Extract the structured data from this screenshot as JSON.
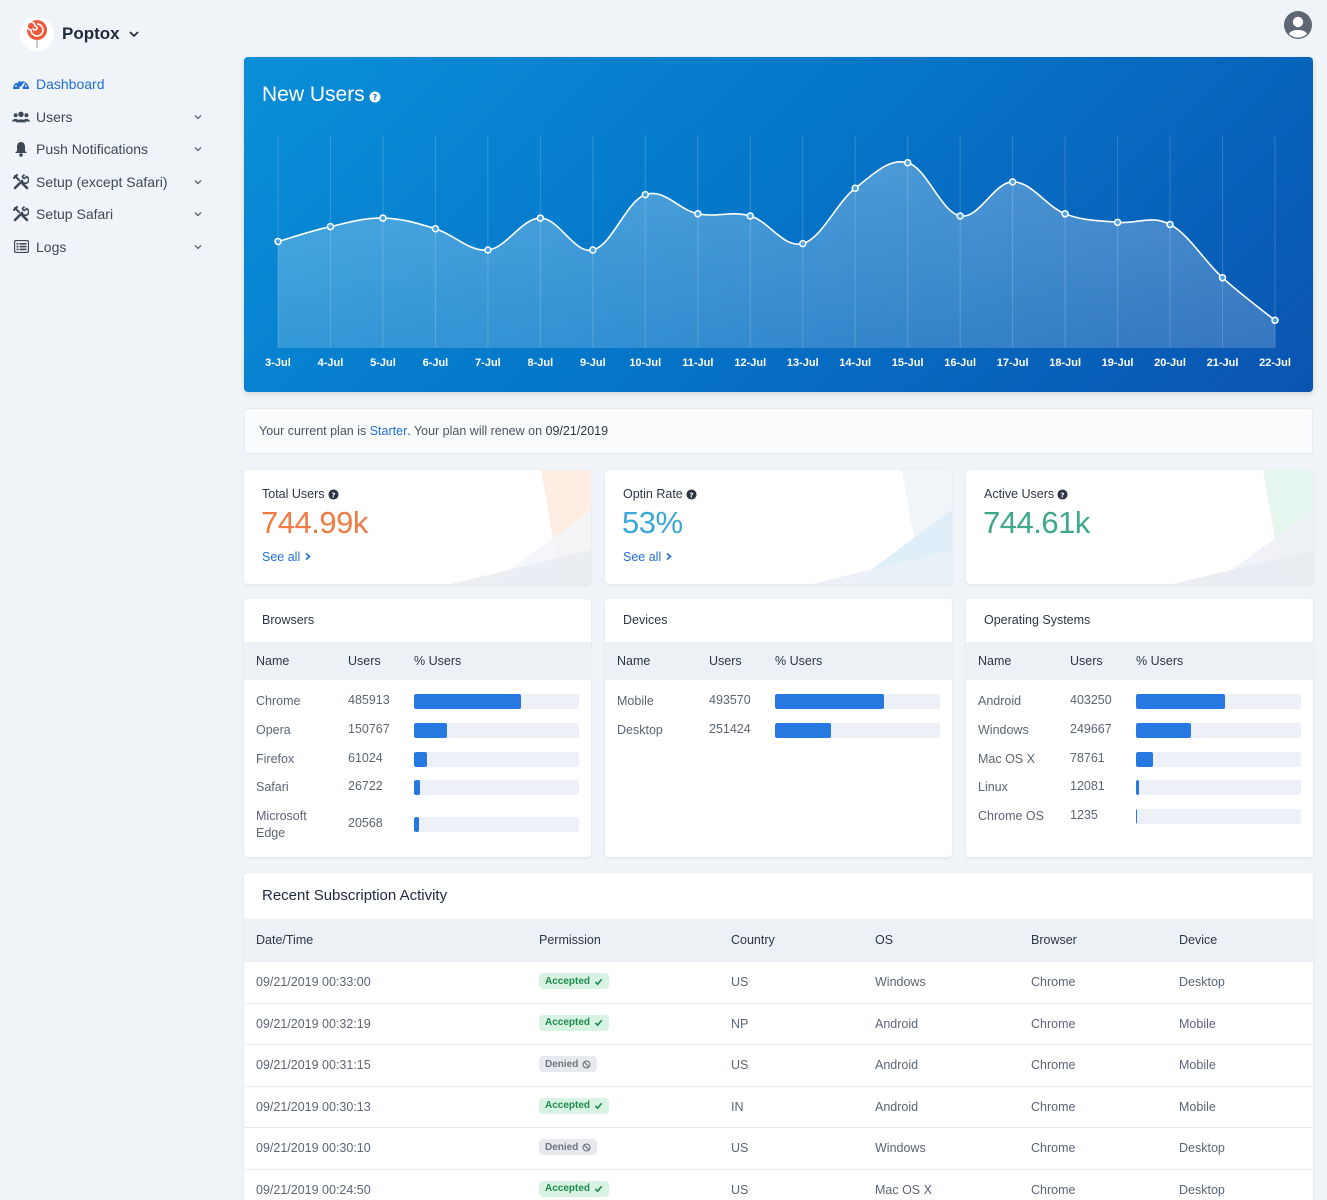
{
  "app": {
    "name": "Poptox"
  },
  "sidebar": {
    "items": [
      {
        "label": "Dashboard",
        "icon": "dashboard-gauge-icon",
        "active": true,
        "expandable": false
      },
      {
        "label": "Users",
        "icon": "users-icon",
        "active": false,
        "expandable": true
      },
      {
        "label": "Push Notifications",
        "icon": "bell-icon",
        "active": false,
        "expandable": true
      },
      {
        "label": "Setup (except Safari)",
        "icon": "tools-icon",
        "active": false,
        "expandable": true
      },
      {
        "label": "Setup Safari",
        "icon": "tools-icon",
        "active": false,
        "expandable": true
      },
      {
        "label": "Logs",
        "icon": "list-icon",
        "active": false,
        "expandable": true
      }
    ]
  },
  "hero": {
    "title": "New Users"
  },
  "chart_data": {
    "type": "area",
    "title": "New Users",
    "categories": [
      "3-Jul",
      "4-Jul",
      "5-Jul",
      "6-Jul",
      "7-Jul",
      "8-Jul",
      "9-Jul",
      "10-Jul",
      "11-Jul",
      "12-Jul",
      "13-Jul",
      "14-Jul",
      "15-Jul",
      "16-Jul",
      "17-Jul",
      "18-Jul",
      "19-Jul",
      "20-Jul",
      "21-Jul",
      "22-Jul"
    ],
    "series": [
      {
        "values": [
          0.5,
          0.57,
          0.61,
          0.56,
          0.46,
          0.61,
          0.46,
          0.72,
          0.63,
          0.62,
          0.49,
          0.75,
          0.87,
          0.62,
          0.78,
          0.63,
          0.59,
          0.58,
          0.33,
          0.13
        ]
      }
    ],
    "ylim": [
      0,
      1
    ],
    "grid": "vertical",
    "legend": "none"
  },
  "plan": {
    "prefix": "Your current plan is ",
    "plan_name": "Starter",
    "middle": ". Your plan will renew on ",
    "renew_date": "09/21/2019"
  },
  "stats": [
    {
      "title": "Total Users",
      "value": "744.99k",
      "link": "See all",
      "color": "#ef7b45"
    },
    {
      "title": "Optin Rate",
      "value": "53%",
      "link": "See all",
      "color": "#3aa8d8"
    },
    {
      "title": "Active Users",
      "value": "744.61k",
      "link": "",
      "color": "#3da88a"
    }
  ],
  "tables": [
    {
      "title": "Browsers",
      "headers": [
        "Name",
        "Users",
        "% Users"
      ],
      "rows": [
        {
          "name": "Chrome",
          "users": "485913",
          "pct": 0.65
        },
        {
          "name": "Opera",
          "users": "150767",
          "pct": 0.2
        },
        {
          "name": "Firefox",
          "users": "61024",
          "pct": 0.08
        },
        {
          "name": "Safari",
          "users": "26722",
          "pct": 0.036
        },
        {
          "name": "Microsoft Edge",
          "users": "20568",
          "pct": 0.028
        }
      ]
    },
    {
      "title": "Devices",
      "headers": [
        "Name",
        "Users",
        "% Users"
      ],
      "rows": [
        {
          "name": "Mobile",
          "users": "493570",
          "pct": 0.66
        },
        {
          "name": "Desktop",
          "users": "251424",
          "pct": 0.34
        }
      ]
    },
    {
      "title": "Operating Systems",
      "headers": [
        "Name",
        "Users",
        "% Users"
      ],
      "rows": [
        {
          "name": "Android",
          "users": "403250",
          "pct": 0.54
        },
        {
          "name": "Windows",
          "users": "249667",
          "pct": 0.335
        },
        {
          "name": "Mac OS X",
          "users": "78761",
          "pct": 0.106
        },
        {
          "name": "Linux",
          "users": "12081",
          "pct": 0.016
        },
        {
          "name": "Chrome OS",
          "users": "1235",
          "pct": 0.002
        }
      ]
    }
  ],
  "activity": {
    "title": "Recent Subscription Activity",
    "headers": [
      "Date/Time",
      "Permission",
      "Country",
      "OS",
      "Browser",
      "Device"
    ],
    "rows": [
      {
        "datetime": "09/21/2019 00:33:00",
        "permission": "Accepted",
        "country": "US",
        "os": "Windows",
        "browser": "Chrome",
        "device": "Desktop"
      },
      {
        "datetime": "09/21/2019 00:32:19",
        "permission": "Accepted",
        "country": "NP",
        "os": "Android",
        "browser": "Chrome",
        "device": "Mobile"
      },
      {
        "datetime": "09/21/2019 00:31:15",
        "permission": "Denied",
        "country": "US",
        "os": "Android",
        "browser": "Chrome",
        "device": "Mobile"
      },
      {
        "datetime": "09/21/2019 00:30:13",
        "permission": "Accepted",
        "country": "IN",
        "os": "Android",
        "browser": "Chrome",
        "device": "Mobile"
      },
      {
        "datetime": "09/21/2019 00:30:10",
        "permission": "Denied",
        "country": "US",
        "os": "Windows",
        "browser": "Chrome",
        "device": "Desktop"
      },
      {
        "datetime": "09/21/2019 00:24:50",
        "permission": "Accepted",
        "country": "US",
        "os": "Mac OS X",
        "browser": "Chrome",
        "device": "Desktop"
      }
    ]
  },
  "colors": {
    "accent": "#1f6fd6",
    "bar": "#2878e2",
    "hero_start": "#0a8fd8",
    "hero_end": "#0a54b0"
  }
}
